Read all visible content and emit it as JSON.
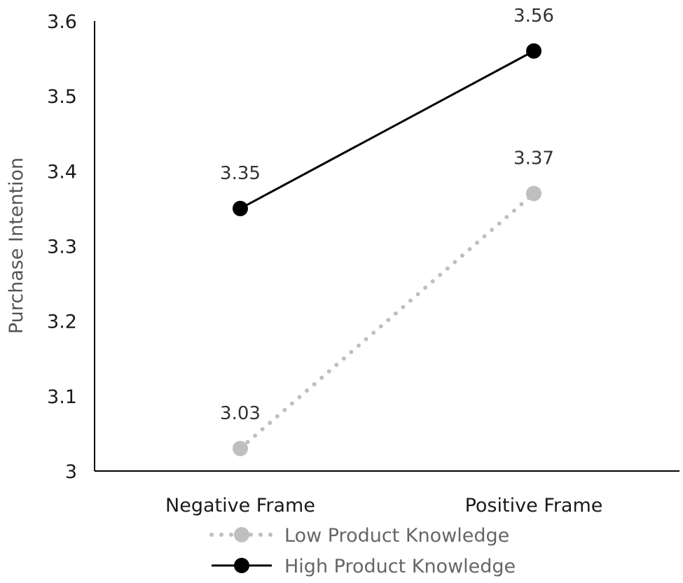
{
  "chart_data": {
    "type": "line",
    "categories": [
      "Negative Frame",
      "Positive Frame"
    ],
    "ylabel": "Purchase Intention",
    "xlabel": "",
    "ylim": [
      3.0,
      3.6
    ],
    "yticks": [
      "3",
      "3.1",
      "3.2",
      "3.3",
      "3.4",
      "3.5",
      "3.6"
    ],
    "grid": false,
    "legend_position": "bottom",
    "series": [
      {
        "name": "Low Product Knowledge",
        "values": [
          3.03,
          3.37
        ],
        "labels": [
          "3.03",
          "3.37"
        ],
        "color": "#bfbfbf",
        "line_style": "dotted"
      },
      {
        "name": "High Product Knowledge",
        "values": [
          3.35,
          3.56
        ],
        "labels": [
          "3.35",
          "3.56"
        ],
        "color": "#000000",
        "line_style": "solid"
      }
    ]
  }
}
